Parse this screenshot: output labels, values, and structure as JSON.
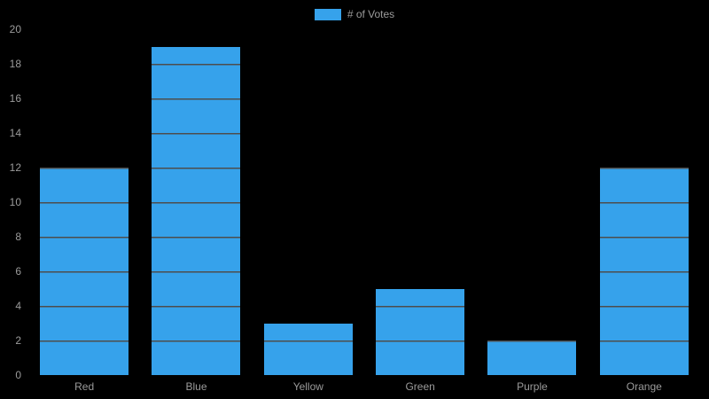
{
  "chart_data": {
    "type": "bar",
    "title": "",
    "categories": [
      "Red",
      "Blue",
      "Yellow",
      "Green",
      "Purple",
      "Orange"
    ],
    "values": [
      12,
      19,
      3,
      5,
      2,
      12
    ],
    "series_label": "# of Votes",
    "xlabel": "",
    "ylabel": "",
    "ylim": [
      0,
      20
    ],
    "ytick_step": 2,
    "bar_color": "#36A2EB",
    "gridline_color": "rgba(255,255,255,0.3)",
    "tick_label_color": "#9b9b9b",
    "background_color": "#000000",
    "legend_position": "top",
    "grid": true
  },
  "legend": {
    "label": "# of Votes"
  }
}
